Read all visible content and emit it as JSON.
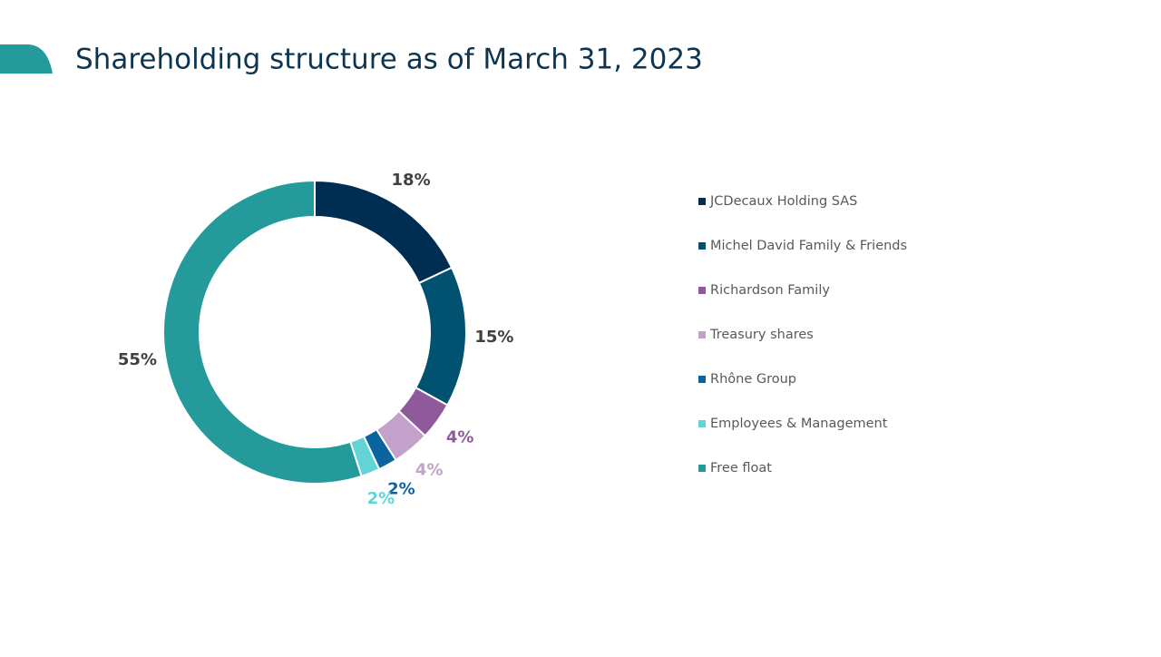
{
  "chart_data": {
    "type": "donut",
    "title": "Shareholding structure as of March 31, 2023",
    "categories": [
      "JCDecaux Holding SAS",
      "Michel David Family & Friends",
      "Richardson Family",
      "Treasury shares",
      "Rhône Group",
      "Employees & Management",
      "Free float"
    ],
    "values": [
      18,
      15,
      4,
      4,
      2,
      2,
      55
    ],
    "value_labels": [
      "18%",
      "15%",
      "4%",
      "4%",
      "2%",
      "2%",
      "55%"
    ],
    "colors": [
      "#002d52",
      "#005270",
      "#8e5a9b",
      "#c2a2ca",
      "#0a64a0",
      "#62d4d6",
      "#259a9a"
    ],
    "label_colors": [
      "#404040",
      "#404040",
      "#8e5a9b",
      "#c2a2ca",
      "#0a64a0",
      "#62d4d6",
      "#404040"
    ],
    "legend": "right"
  }
}
